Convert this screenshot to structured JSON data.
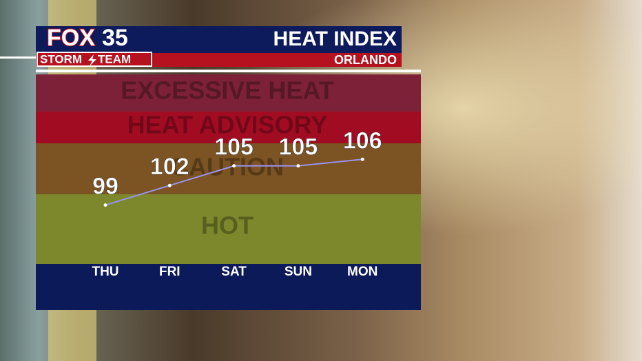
{
  "branding": {
    "logo_word": "FOX",
    "logo_number": "35",
    "team_left": "STORM",
    "team_right": "TEAM"
  },
  "chart_data": {
    "type": "line",
    "title": "HEAT INDEX",
    "subtitle": "ORLANDO",
    "categories": [
      "THU",
      "FRI",
      "SAT",
      "SUN",
      "MON"
    ],
    "values": [
      99,
      102,
      105,
      105,
      106
    ],
    "color": "#9a93f0",
    "ylim": [
      90,
      119
    ],
    "bands": [
      {
        "label": "EXCESSIVE HEAT",
        "color": "#7c2137"
      },
      {
        "label": "HEAT ADVISORY",
        "color": "#a20c23"
      },
      {
        "label": "CAUTION",
        "color": "#7c5322"
      },
      {
        "label": "HOT",
        "color": "#7d882c"
      }
    ]
  }
}
